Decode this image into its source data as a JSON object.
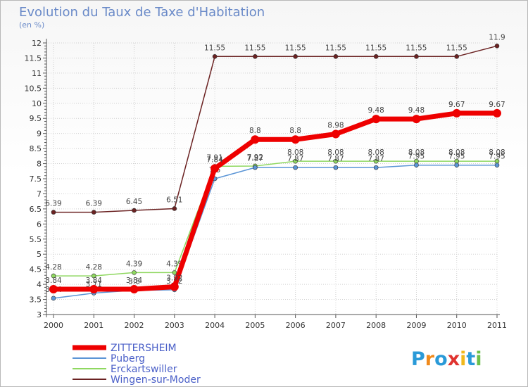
{
  "title": "Evolution du Taux de Taxe d'Habitation",
  "subtitle": "(en %)",
  "logo_text": "Proxiti",
  "chart_data": {
    "type": "line",
    "title": "Evolution du Taux de Taxe d'Habitation",
    "subtitle": "(en %)",
    "xlabel": "",
    "ylabel": "",
    "x": [
      "2000",
      "2001",
      "2002",
      "2003",
      "2004",
      "2005",
      "2006",
      "2007",
      "2008",
      "2009",
      "2010",
      "2011"
    ],
    "ylim": [
      3,
      12
    ],
    "y_major_ticks": [
      "3",
      "3.5",
      "4",
      "4.5",
      "5",
      "5.5",
      "6",
      "6.5",
      "7",
      "7.5",
      "8",
      "8.5",
      "9",
      "9.5",
      "10",
      "10.5",
      "11",
      "11.5",
      "12"
    ],
    "grid": true,
    "legend_position": "bottom-left",
    "series": [
      {
        "name": "Wingen-sur-Moder",
        "color": "#6b2222",
        "values": [
          6.39,
          6.39,
          6.45,
          6.51,
          11.55,
          11.55,
          11.55,
          11.55,
          11.55,
          11.55,
          11.55,
          11.9
        ],
        "labels": [
          "6.39",
          "6.39",
          "6.45",
          "6.51",
          "11.55",
          "11.55",
          "11.55",
          "11.55",
          "11.55",
          "11.55",
          "11.55",
          "11.9"
        ]
      },
      {
        "name": "Erckartswiller",
        "color": "#8fd860",
        "values": [
          4.28,
          4.28,
          4.39,
          4.39,
          7.91,
          7.92,
          8.08,
          8.08,
          8.08,
          8.08,
          8.08,
          8.08
        ],
        "labels": [
          "4.28",
          "4.28",
          "4.39",
          "4.39",
          "7.91",
          "7.92",
          "8.08",
          "8.08",
          "8.08",
          "8.08",
          "8.08",
          "8.08"
        ]
      },
      {
        "name": "Puberg",
        "color": "#5b95d6",
        "values": [
          3.54,
          3.71,
          3.8,
          3.82,
          7.5,
          7.87,
          7.87,
          7.87,
          7.87,
          7.95,
          7.95,
          7.95
        ],
        "labels": [
          "3.54",
          "3.71",
          "3.8",
          "3.82",
          "7.5",
          "7.87",
          "7.87",
          "7.87",
          "7.87",
          "7.95",
          "7.95",
          "7.95"
        ]
      },
      {
        "name": "ZITTERSHEIM",
        "color": "#ee0000",
        "values": [
          3.84,
          3.84,
          3.84,
          3.92,
          7.84,
          8.8,
          8.8,
          8.98,
          9.48,
          9.48,
          9.67,
          9.67
        ],
        "labels": [
          "3.84",
          "3.84",
          "3.84",
          "3.92",
          "7.84",
          "8.8",
          "8.8",
          "8.98",
          "9.48",
          "9.48",
          "9.67",
          "9.67"
        ]
      }
    ],
    "legend": [
      "ZITTERSHEIM",
      "Puberg",
      "Erckartswiller",
      "Wingen-sur-Moder"
    ]
  }
}
